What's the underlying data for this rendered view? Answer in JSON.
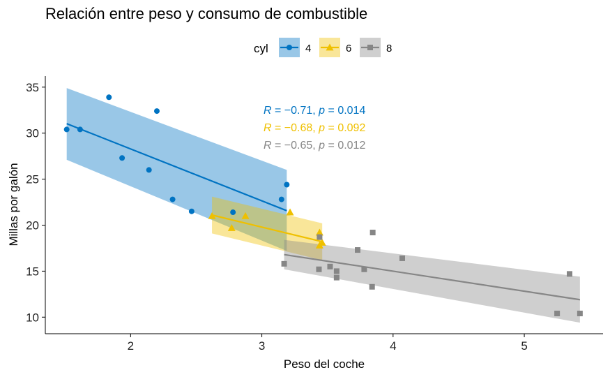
{
  "chart_data": {
    "type": "scatter",
    "title": "Relación entre peso y consumo de combustible",
    "xlabel": "Peso del coche",
    "ylabel": "Millas por galón",
    "xlim": [
      1.35,
      5.6
    ],
    "ylim": [
      8.2,
      36.2
    ],
    "xticks": [
      2,
      3,
      4,
      5
    ],
    "yticks": [
      10,
      15,
      20,
      25,
      30,
      35
    ],
    "grid": false,
    "legend": {
      "title": "cyl",
      "position": "top"
    },
    "series": [
      {
        "name": "4",
        "color": "#0073C2",
        "marker": "circle",
        "points": [
          [
            1.513,
            30.4
          ],
          [
            1.615,
            30.4
          ],
          [
            1.835,
            33.9
          ],
          [
            1.935,
            27.3
          ],
          [
            2.14,
            26.0
          ],
          [
            2.2,
            32.4
          ],
          [
            2.32,
            22.8
          ],
          [
            2.465,
            21.5
          ],
          [
            2.78,
            21.4
          ],
          [
            3.15,
            22.8
          ],
          [
            3.19,
            24.4
          ]
        ],
        "fit": {
          "x": [
            1.513,
            3.19
          ],
          "y": [
            31.03,
            21.57
          ]
        },
        "band": {
          "x": [
            1.513,
            3.19
          ],
          "upper": [
            34.9,
            26.0
          ],
          "lower": [
            27.1,
            17.2
          ]
        },
        "stat": {
          "R": "−0.71",
          "p": "0.014"
        }
      },
      {
        "name": "6",
        "color": "#EFC000",
        "marker": "triangle",
        "points": [
          [
            2.62,
            21.0
          ],
          [
            2.77,
            19.7
          ],
          [
            2.875,
            21.0
          ],
          [
            3.215,
            21.4
          ],
          [
            3.44,
            19.2
          ],
          [
            3.44,
            17.8
          ],
          [
            3.46,
            18.1
          ]
        ],
        "fit": {
          "x": [
            2.62,
            3.46
          ],
          "y": [
            21.1,
            18.2
          ]
        },
        "band": {
          "x": [
            2.62,
            3.46
          ],
          "upper": [
            23.1,
            20.2
          ],
          "lower": [
            19.1,
            16.2
          ]
        },
        "stat": {
          "R": "−0.68",
          "p": "0.092"
        }
      },
      {
        "name": "8",
        "color": "#868686",
        "marker": "square",
        "points": [
          [
            3.17,
            15.8
          ],
          [
            3.435,
            15.2
          ],
          [
            3.44,
            18.7
          ],
          [
            3.52,
            15.5
          ],
          [
            3.57,
            14.3
          ],
          [
            3.57,
            15.0
          ],
          [
            3.73,
            17.3
          ],
          [
            3.78,
            15.2
          ],
          [
            3.84,
            13.3
          ],
          [
            3.845,
            19.2
          ],
          [
            4.07,
            16.4
          ],
          [
            5.25,
            10.4
          ],
          [
            5.345,
            14.7
          ],
          [
            5.424,
            10.4
          ]
        ],
        "fit": {
          "x": [
            3.17,
            5.424
          ],
          "y": [
            16.8,
            11.9
          ]
        },
        "band": {
          "x": [
            3.17,
            5.424
          ],
          "upper": [
            18.4,
            14.4
          ],
          "lower": [
            15.2,
            9.4
          ]
        },
        "stat": {
          "R": "−0.65",
          "p": "0.012"
        }
      }
    ]
  }
}
